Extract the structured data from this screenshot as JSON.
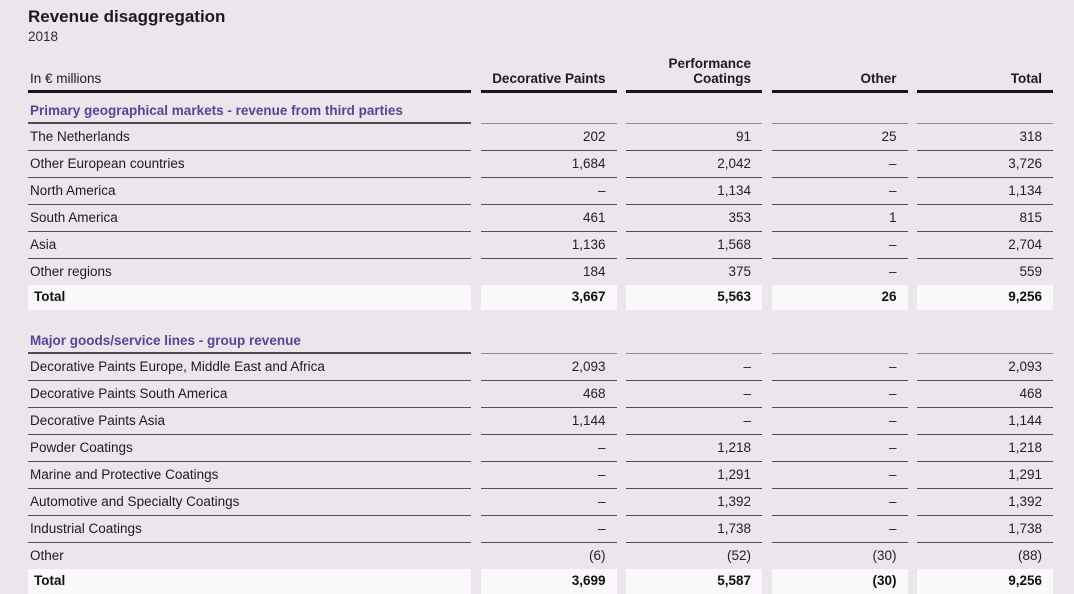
{
  "theme": {
    "background": "#ebe5ec",
    "accent_purple": "#5e3f99",
    "total_band": "#faf8fa",
    "rule_dark": "#18161a",
    "rule_row": "#514c4e"
  },
  "page": {
    "title": "Revenue disaggregation",
    "subtitle": "2018"
  },
  "table": {
    "unit_label": "In € millions",
    "columns": [
      "Decorative Paints",
      "Performance Coatings",
      "Other",
      "Total"
    ],
    "sections": [
      {
        "heading": "Primary geographical markets - revenue from third parties",
        "rows": [
          {
            "label": "The Netherlands",
            "values": [
              "202",
              "91",
              "25",
              "318"
            ]
          },
          {
            "label": "Other European countries",
            "values": [
              "1,684",
              "2,042",
              "–",
              "3,726"
            ]
          },
          {
            "label": "North America",
            "values": [
              "–",
              "1,134",
              "–",
              "1,134"
            ]
          },
          {
            "label": "South America",
            "values": [
              "461",
              "353",
              "1",
              "815"
            ]
          },
          {
            "label": "Asia",
            "values": [
              "1,136",
              "1,568",
              "–",
              "2,704"
            ]
          },
          {
            "label": "Other regions",
            "values": [
              "184",
              "375",
              "–",
              "559"
            ]
          }
        ],
        "total": {
          "label": "Total",
          "values": [
            "3,667",
            "5,563",
            "26",
            "9,256"
          ]
        }
      },
      {
        "heading": "Major goods/service lines - group revenue",
        "rows": [
          {
            "label": "Decorative Paints Europe, Middle East and Africa",
            "values": [
              "2,093",
              "–",
              "–",
              "2,093"
            ]
          },
          {
            "label": "Decorative Paints South America",
            "values": [
              "468",
              "–",
              "–",
              "468"
            ]
          },
          {
            "label": "Decorative Paints Asia",
            "values": [
              "1,144",
              "–",
              "–",
              "1,144"
            ]
          },
          {
            "label": "Powder Coatings",
            "values": [
              "–",
              "1,218",
              "–",
              "1,218"
            ]
          },
          {
            "label": "Marine and Protective Coatings",
            "values": [
              "–",
              "1,291",
              "–",
              "1,291"
            ]
          },
          {
            "label": "Automotive and Specialty Coatings",
            "values": [
              "–",
              "1,392",
              "–",
              "1,392"
            ]
          },
          {
            "label": "Industrial Coatings",
            "values": [
              "–",
              "1,738",
              "–",
              "1,738"
            ]
          },
          {
            "label": "Other",
            "values": [
              "(6)",
              "(52)",
              "(30)",
              "(88)"
            ]
          }
        ],
        "total": {
          "label": "Total",
          "values": [
            "3,699",
            "5,587",
            "(30)",
            "9,256"
          ]
        }
      }
    ]
  }
}
